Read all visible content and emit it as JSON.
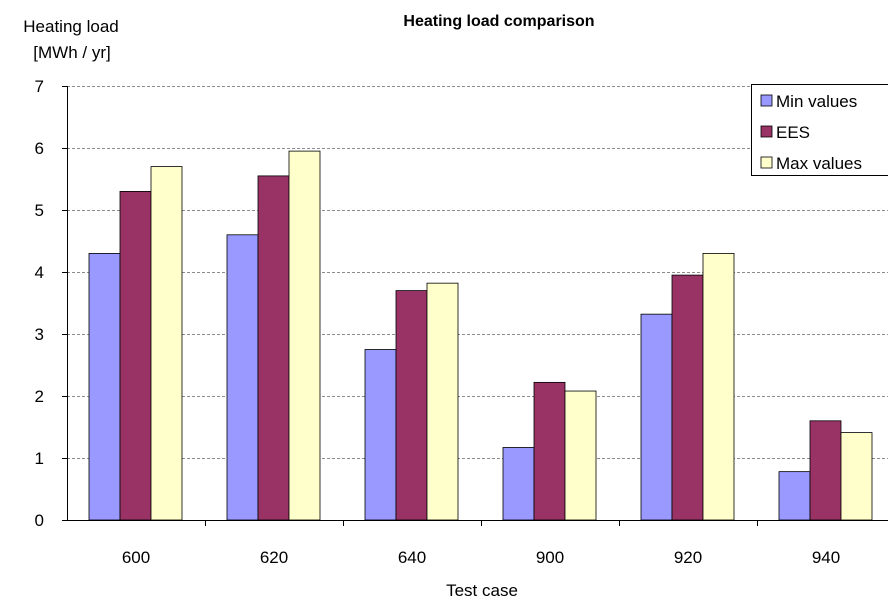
{
  "chart_data": {
    "type": "bar",
    "title": "Heating load comparison",
    "ylabel_lines": [
      "Heating load",
      "[MWh / yr]"
    ],
    "xlabel": "Test case",
    "categories": [
      "600",
      "620",
      "640",
      "900",
      "920",
      "940"
    ],
    "series": [
      {
        "name": "Min values",
        "color": "#9999ff",
        "values": [
          4.3,
          4.6,
          2.75,
          1.17,
          3.32,
          0.78
        ]
      },
      {
        "name": "EES",
        "color": "#993366",
        "values": [
          5.3,
          5.55,
          3.7,
          2.22,
          3.95,
          1.6
        ]
      },
      {
        "name": "Max values",
        "color": "#ffffcc",
        "values": [
          5.7,
          5.95,
          3.82,
          2.08,
          4.3,
          1.41
        ]
      }
    ],
    "ylim": [
      0,
      7
    ],
    "yticks": [
      0,
      1,
      2,
      3,
      4,
      5,
      6,
      7
    ],
    "grid": "horizontal dashed",
    "legend_position": "top-right"
  }
}
